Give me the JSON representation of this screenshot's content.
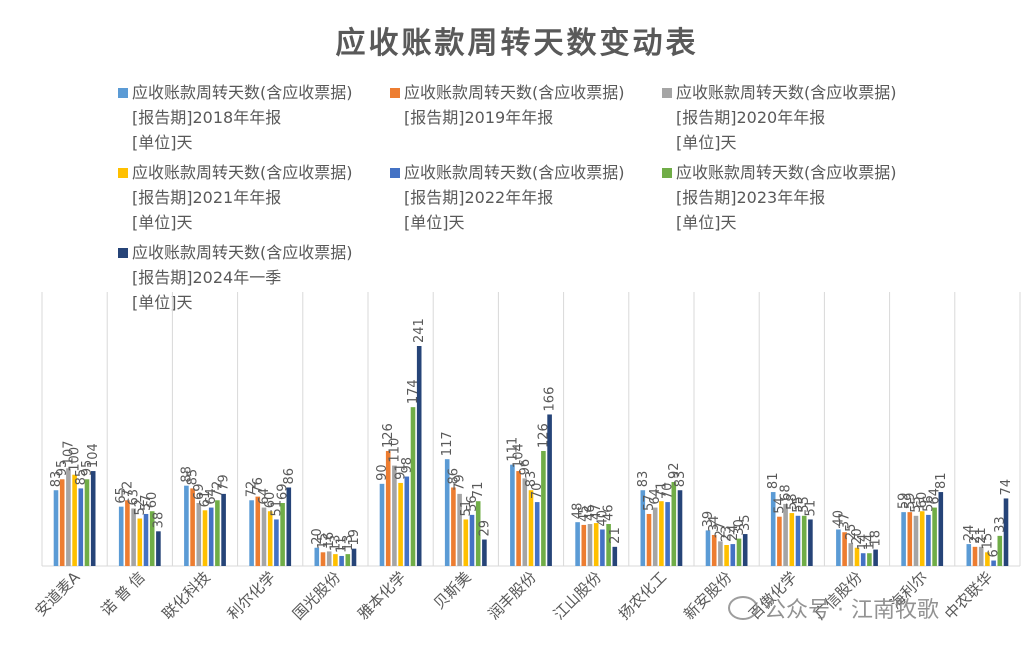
{
  "chart_data": {
    "type": "bar",
    "title": "应收账款周转天数变动表",
    "xlabel": "",
    "ylabel": "",
    "ylim": [
      0,
      250
    ],
    "grid": false,
    "legend_position": "top",
    "categories": [
      "安道麦A",
      "诺 普 信",
      "联化科技",
      "利尔化学",
      "国光股份",
      "雅本化学",
      "贝斯美",
      "润丰股份",
      "江山股份",
      "扬农化工",
      "新安股份",
      "百傲化学",
      "广信股份",
      "海利尔",
      "中农联华"
    ],
    "series": [
      {
        "name": "应收账款周转天数(含应收票据)\n[报告期]2018年年报\n[单位]天",
        "color": "#5b9bd5",
        "values": [
          83,
          65,
          88,
          72,
          20,
          90,
          117,
          111,
          48,
          83,
          39,
          81,
          40,
          59,
          24
        ]
      },
      {
        "name": "应收账款周转天数(含应收票据)\n[报告期]2019年年报",
        "color": "#ed7d31",
        "values": [
          95,
          72,
          85,
          76,
          15,
          126,
          86,
          104,
          45,
          57,
          34,
          54,
          37,
          59,
          21
        ]
      },
      {
        "name": "应收账款周转天数(含应收票据)\n[报告期]2020年年报\n[单位]天",
        "color": "#a5a5a5",
        "values": [
          107,
          63,
          69,
          64,
          16,
          110,
          79,
          96,
          46,
          64,
          27,
          68,
          25,
          55,
          21
        ]
      },
      {
        "name": "应收账款周转天数(含应收票据)\n[报告期]2021年年报\n[单位]天",
        "color": "#ffc000",
        "values": [
          100,
          52,
          61,
          60,
          13,
          91,
          51,
          83,
          47,
          71,
          23,
          58,
          20,
          60,
          15
        ]
      },
      {
        "name": "应收账款周转天数(含应收票据)\n[报告期]2022年年报\n[单位]天",
        "color": "#4472c4",
        "values": [
          85,
          57,
          64,
          51,
          11,
          98,
          56,
          70,
          40,
          70,
          24,
          55,
          14,
          56,
          6
        ]
      },
      {
        "name": "应收账款周转天数(含应收票据)\n[报告期]2023年年报\n[单位]天",
        "color": "#70ad47",
        "values": [
          95,
          60,
          72,
          69,
          13,
          174,
          71,
          126,
          46,
          92,
          30,
          55,
          14,
          64,
          33
        ]
      },
      {
        "name": "应收账款周转天数(含应收票据)\n[报告期]2024年一季\n[单位]天",
        "color": "#264478",
        "values": [
          104,
          38,
          79,
          86,
          19,
          241,
          29,
          166,
          21,
          83,
          35,
          51,
          18,
          81,
          74
        ]
      }
    ]
  },
  "watermark": {
    "text": "公众号 · 江南牧歌",
    "icon": "wechat-icon"
  }
}
